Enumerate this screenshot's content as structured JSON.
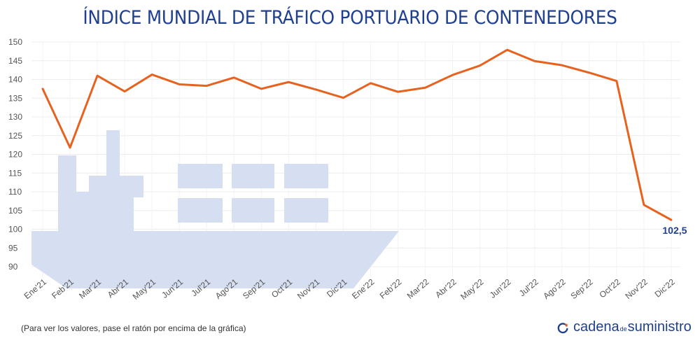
{
  "chart_data": {
    "type": "line",
    "title": "ÍNDICE MUNDIAL DE TRÁFICO PORTUARIO DE CONTENEDORES",
    "categories": [
      "Ene'21",
      "Feb'21",
      "Mar'21",
      "Abr'21",
      "May'21",
      "Jun'21",
      "Jul'21",
      "Ago'21",
      "Sep'21",
      "Oct'21",
      "Nov'21",
      "Dic'21",
      "Ene'22",
      "Feb'22",
      "Mar'22",
      "Abr'22",
      "May'22",
      "Jun'22",
      "Jul'22",
      "Ago'22",
      "Sep'22",
      "Oct'22",
      "Nov'22",
      "Dic'22"
    ],
    "values": [
      137.5,
      121.8,
      141,
      136.8,
      141.3,
      138.7,
      138.3,
      140.5,
      137.5,
      139.3,
      137.3,
      135.1,
      139,
      136.7,
      137.8,
      141.2,
      143.7,
      147.9,
      144.9,
      143.8,
      141.8,
      139.6,
      106.5,
      102.5
    ],
    "yticks": [
      150,
      145,
      140,
      135,
      130,
      125,
      120,
      115,
      110,
      105,
      100,
      95,
      90
    ],
    "ylim": [
      88,
      152
    ],
    "last_label": "102,5",
    "line_color": "#e8621f",
    "grid": true
  },
  "footnote": "(Para ver los valores, pase el ratón por encima de la gráfica)",
  "brand": {
    "part1": "cadena",
    "part2": "de",
    "part3": "suministro",
    "color": "#1f3f8f",
    "accent": "#e8621f"
  }
}
